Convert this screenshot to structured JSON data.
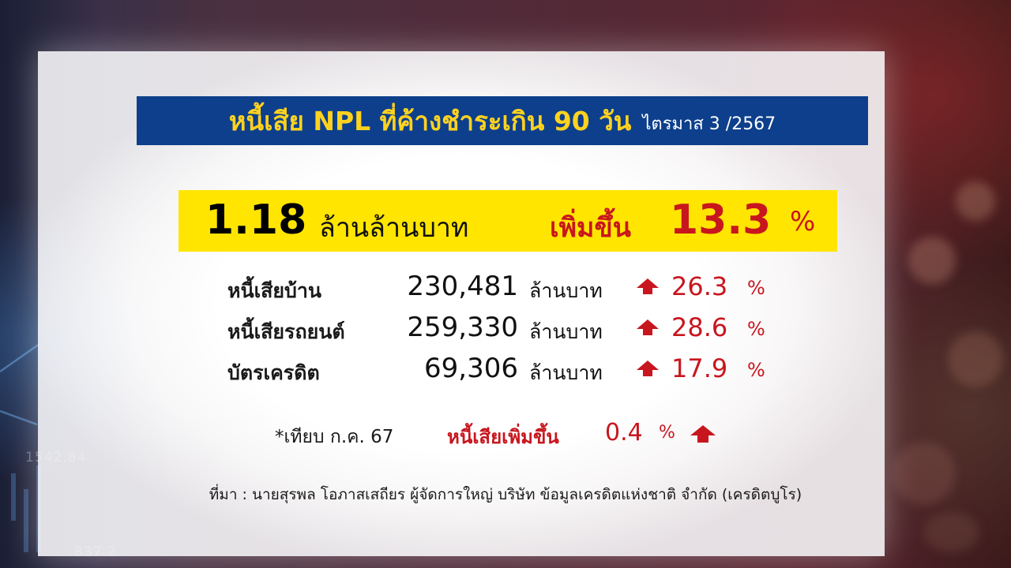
{
  "colors": {
    "title_bar_bg": "#0d3f8c",
    "title_text": "#ffd21f",
    "highlight_bg": "#ffe500",
    "accent_red": "#c8161e"
  },
  "background": {
    "numbers": [
      "1542.84",
      "837.2"
    ]
  },
  "title": {
    "main": "หนี้เสีย NPL ที่ค้างชำระเกิน 90 วัน",
    "sub": "ไตรมาส 3 /2567"
  },
  "highlight": {
    "total_value": "1.18",
    "total_unit": "ล้านล้านบาท",
    "increase_label": "เพิ่มขึ้น",
    "increase_value": "13.3",
    "increase_pct_sign": "%"
  },
  "rows": [
    {
      "label": "หนี้เสียบ้าน",
      "value": "230,481",
      "unit": "ล้านบาท",
      "icon": "up-arrow-icon",
      "pct": "26.3",
      "pct_sign": "%"
    },
    {
      "label": "หนี้เสียรถยนต์",
      "value": "259,330",
      "unit": "ล้านบาท",
      "icon": "up-arrow-icon",
      "pct": "28.6",
      "pct_sign": "%"
    },
    {
      "label": "บัตรเครดิต",
      "value": "69,306",
      "unit": "ล้านบาท",
      "icon": "up-arrow-icon",
      "pct": "17.9",
      "pct_sign": "%"
    }
  ],
  "compare": {
    "label": "*เทียบ ก.ค. 67",
    "text": "หนี้เสียเพิ่มขึ้น",
    "value": "0.4",
    "pct_sign": "%",
    "icon": "up-arrow-icon"
  },
  "source": "ที่มา : นายสุรพล โอภาสเสถียร ผู้จัดการใหญ่ บริษัท ข้อมูลเครดิตแห่งชาติ จำกัด (เครดิตบูโร)"
}
